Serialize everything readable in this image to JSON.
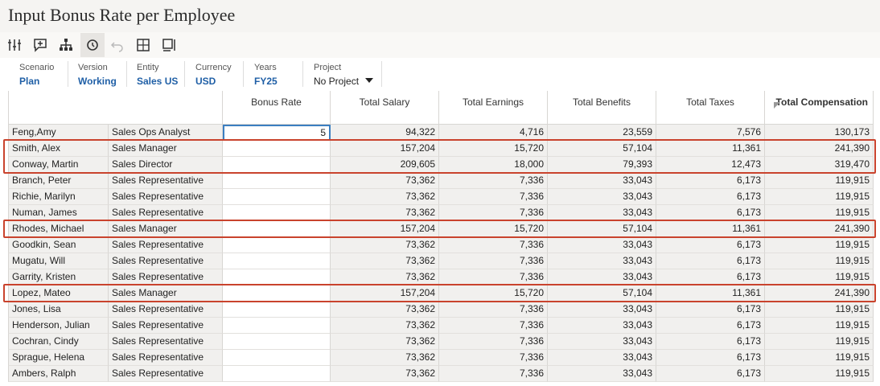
{
  "header": {
    "title": "Input Bonus Rate per Employee"
  },
  "pov": [
    {
      "label": "Scenario",
      "value": "Plan"
    },
    {
      "label": "Version",
      "value": "Working"
    },
    {
      "label": "Entity",
      "value": "Sales US"
    },
    {
      "label": "Currency",
      "value": "USD"
    },
    {
      "label": "Years",
      "value": "FY25"
    },
    {
      "label": "Project",
      "value": "No Project"
    }
  ],
  "table": {
    "columns": [
      "Bonus Rate",
      "Total Salary",
      "Total Earnings",
      "Total Benefits",
      "Total Taxes",
      "Total Compensation"
    ],
    "rows": [
      [
        "Feng,Amy",
        "Sales Ops Analyst",
        "5",
        "94,322",
        "4,716",
        "23,559",
        "7,576",
        "130,173"
      ],
      [
        "Smith, Alex",
        "Sales Manager",
        null,
        "157,204",
        "15,720",
        "57,104",
        "11,361",
        "241,390"
      ],
      [
        "Conway, Martin",
        "Sales Director",
        null,
        "209,605",
        "18,000",
        "79,393",
        "12,473",
        "319,470"
      ],
      [
        "Branch, Peter",
        "Sales Representative",
        null,
        "73,362",
        "7,336",
        "33,043",
        "6,173",
        "119,915"
      ],
      [
        "Richie, Marilyn",
        "Sales Representative",
        null,
        "73,362",
        "7,336",
        "33,043",
        "6,173",
        "119,915"
      ],
      [
        "Numan, James",
        "Sales Representative",
        null,
        "73,362",
        "7,336",
        "33,043",
        "6,173",
        "119,915"
      ],
      [
        "Rhodes, Michael",
        "Sales Manager",
        null,
        "157,204",
        "15,720",
        "57,104",
        "11,361",
        "241,390"
      ],
      [
        "Goodkin, Sean",
        "Sales Representative",
        null,
        "73,362",
        "7,336",
        "33,043",
        "6,173",
        "119,915"
      ],
      [
        "Mugatu, Will",
        "Sales Representative",
        null,
        "73,362",
        "7,336",
        "33,043",
        "6,173",
        "119,915"
      ],
      [
        "Garrity, Kristen",
        "Sales Representative",
        null,
        "73,362",
        "7,336",
        "33,043",
        "6,173",
        "119,915"
      ],
      [
        "Lopez, Mateo",
        "Sales Manager",
        null,
        "157,204",
        "15,720",
        "57,104",
        "11,361",
        "241,390"
      ],
      [
        "Jones, Lisa",
        "Sales Representative",
        null,
        "73,362",
        "7,336",
        "33,043",
        "6,173",
        "119,915"
      ],
      [
        "Henderson, Julian",
        "Sales Representative",
        null,
        "73,362",
        "7,336",
        "33,043",
        "6,173",
        "119,915"
      ],
      [
        "Cochran, Cindy",
        "Sales Representative",
        null,
        "73,362",
        "7,336",
        "33,043",
        "6,173",
        "119,915"
      ],
      [
        "Sprague, Helena",
        "Sales Representative",
        null,
        "73,362",
        "7,336",
        "33,043",
        "6,173",
        "119,915"
      ],
      [
        "Ambers, Ralph",
        "Sales Representative",
        null,
        "73,362",
        "7,336",
        "33,043",
        "6,173",
        "119,915"
      ]
    ]
  }
}
